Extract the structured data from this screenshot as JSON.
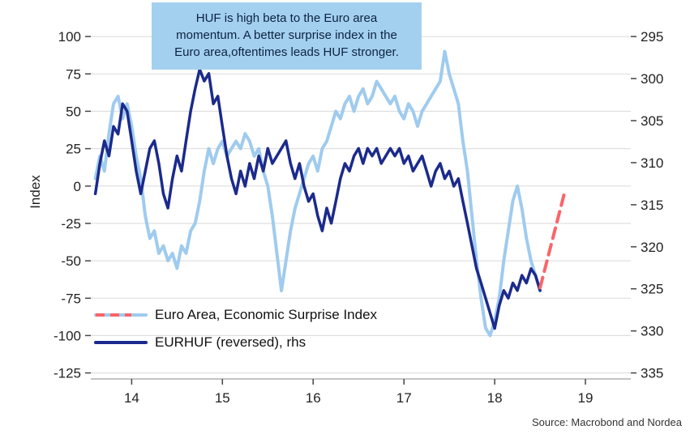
{
  "annotation": {
    "lines": [
      "HUF is high beta to the Euro area",
      "momentum. A better surprise index in the",
      "Euro area,oftentimes leads HUF stronger."
    ]
  },
  "source": "Source: Macrobond and Nordea",
  "legend": {
    "items": [
      {
        "label": "Euro Area, Economic Surprise Index"
      },
      {
        "label": "EURHUF (reversed), rhs"
      }
    ]
  },
  "colors": {
    "light_blue": "#9fcbee",
    "dark_blue": "#1b2a8c",
    "red": "#fa6468",
    "annotation_bg": "#a4d0f0",
    "annotation_text": "#0c2340",
    "grid": "#d9d9d9",
    "axis_line": "#8a8a8a",
    "tick_mark": "#444444"
  },
  "chart_data": {
    "type": "line",
    "x_range": [
      13.55,
      19.5
    ],
    "x_ticks": [
      14,
      15,
      16,
      17,
      18,
      19
    ],
    "left_axis": {
      "label": "Index",
      "ticks": [
        100,
        75,
        50,
        25,
        0,
        -25,
        -50,
        -75,
        -100,
        -125
      ],
      "render_range": [
        119,
        -129
      ]
    },
    "right_axis": {
      "ticks": [
        295,
        300,
        305,
        310,
        315,
        320,
        325,
        330,
        335
      ],
      "align_left_values": [
        100,
        -125
      ],
      "note": "EURHUF plotted reversed: 295 aligns with left 100, 335 aligns with left -125"
    },
    "series": [
      {
        "id": "esi",
        "name": "Euro Area, Economic Surprise Index",
        "axis": "left",
        "color": "#9fcbee",
        "width": 4,
        "x_start": 13.6,
        "x_step": 0.05,
        "values": [
          5,
          20,
          10,
          35,
          55,
          60,
          45,
          55,
          40,
          20,
          5,
          -20,
          -35,
          -30,
          -45,
          -40,
          -50,
          -45,
          -55,
          -40,
          -45,
          -30,
          -25,
          -10,
          10,
          25,
          15,
          25,
          30,
          20,
          25,
          30,
          25,
          35,
          30,
          20,
          25,
          10,
          0,
          -20,
          -45,
          -70,
          -50,
          -30,
          -15,
          -5,
          5,
          15,
          20,
          10,
          25,
          30,
          40,
          50,
          45,
          55,
          60,
          50,
          60,
          65,
          55,
          60,
          70,
          65,
          60,
          55,
          60,
          50,
          45,
          55,
          50,
          40,
          50,
          55,
          60,
          65,
          70,
          90,
          75,
          65,
          55,
          30,
          10,
          -20,
          -50,
          -75,
          -95,
          -100,
          -90,
          -75,
          -50,
          -30,
          -10,
          0,
          -15,
          -35,
          -50,
          -60,
          -70
        ]
      },
      {
        "id": "eurhuf",
        "name": "EURHUF (reversed), rhs",
        "axis": "right",
        "color": "#1b2a8c",
        "width": 3.5,
        "x_start": 13.6,
        "x_step": 0.05,
        "values": [
          313.7,
          310.1,
          307.4,
          309.2,
          305.7,
          306.6,
          303.0,
          303.9,
          307.4,
          311.0,
          313.7,
          311.0,
          308.3,
          307.4,
          310.1,
          313.7,
          315.4,
          311.9,
          309.2,
          311.0,
          307.4,
          303.9,
          301.2,
          298.9,
          300.3,
          299.4,
          303.0,
          302.1,
          305.7,
          309.2,
          311.9,
          313.7,
          311.0,
          312.8,
          310.1,
          311.9,
          309.2,
          311.0,
          308.3,
          310.1,
          309.2,
          308.3,
          307.4,
          310.1,
          311.9,
          310.1,
          312.8,
          314.6,
          313.7,
          316.3,
          318.1,
          315.4,
          317.2,
          314.6,
          311.9,
          310.1,
          311.0,
          309.2,
          308.3,
          310.1,
          308.3,
          309.2,
          308.3,
          310.1,
          309.2,
          308.3,
          309.2,
          308.3,
          310.1,
          309.2,
          311.0,
          310.1,
          309.2,
          311.0,
          312.8,
          311.0,
          310.1,
          311.9,
          311.0,
          312.8,
          311.9,
          314.6,
          317.2,
          319.9,
          322.6,
          324.3,
          326.1,
          327.9,
          329.7,
          327.0,
          325.2,
          326.1,
          324.3,
          325.2,
          323.4,
          324.3,
          322.6,
          323.4,
          325.2
        ]
      },
      {
        "id": "esi-forecast",
        "name": "Euro Area ESI forecast (dashed)",
        "axis": "left",
        "color": "#fa6468",
        "width": 4,
        "dash": "13,8",
        "points": [
          [
            18.5,
            -68
          ],
          [
            18.78,
            -2
          ]
        ]
      }
    ]
  }
}
